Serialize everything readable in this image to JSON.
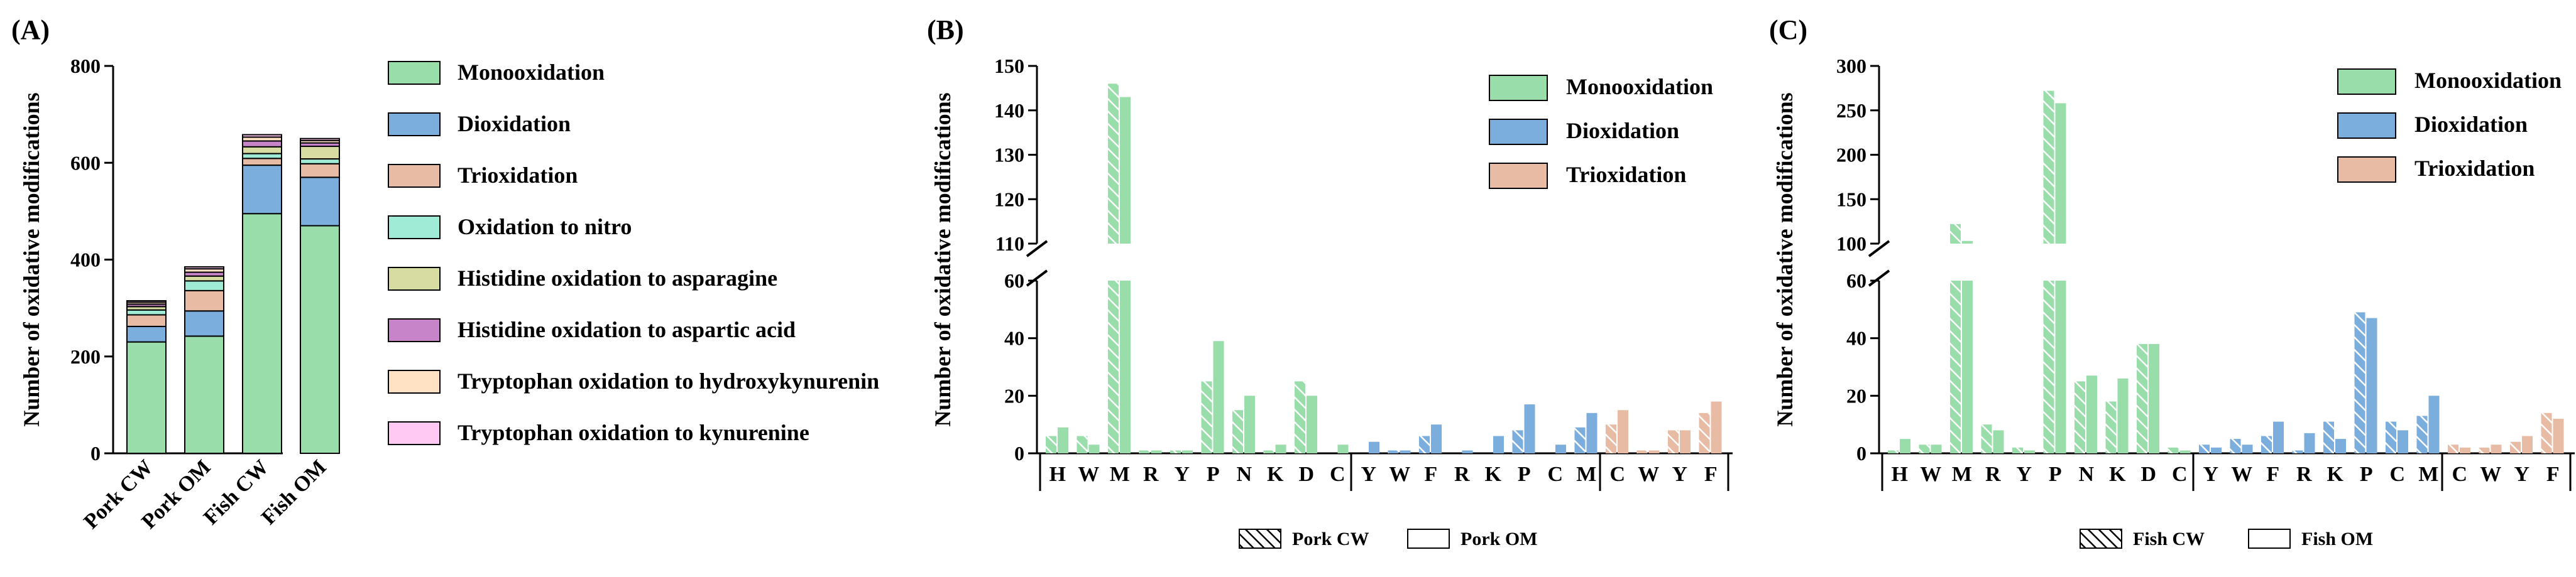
{
  "colors": {
    "mono": "#99DDAB",
    "di": "#7BAEDD",
    "tri": "#E8BBA5",
    "nitro": "#9FEBD6",
    "his_asn": "#D7DCA2",
    "his_asp": "#C784C9",
    "trp_hyd": "#FFE1C4",
    "trp_kyn": "#FFC9F3"
  },
  "chart_data": [
    {
      "panel_label": "(A)",
      "type": "bar",
      "stacked": true,
      "ylabel": "Number of oxidative modifications",
      "ylim": [
        0,
        800
      ],
      "yticks": [
        0,
        200,
        400,
        600,
        800
      ],
      "categories": [
        "Pork CW",
        "Pork OM",
        "Fish CW",
        "Fish OM"
      ],
      "legend_position": "right",
      "series": [
        {
          "name": "Monooxidation",
          "color_key": "mono",
          "values": [
            230,
            242,
            495,
            470
          ]
        },
        {
          "name": "Dioxidation",
          "color_key": "di",
          "values": [
            32,
            52,
            100,
            100
          ]
        },
        {
          "name": "Trioxidation",
          "color_key": "tri",
          "values": [
            24,
            42,
            14,
            28
          ]
        },
        {
          "name": "Oxidation to nitro",
          "color_key": "nitro",
          "values": [
            10,
            20,
            10,
            10
          ]
        },
        {
          "name": "Histidine oxidation to asparagine",
          "color_key": "his_asn",
          "values": [
            7,
            10,
            14,
            26
          ]
        },
        {
          "name": "Histidine oxidation to aspartic acid",
          "color_key": "his_asp",
          "values": [
            5,
            8,
            12,
            7
          ]
        },
        {
          "name": "Tryptophan oxidation to hydroxykynurenin",
          "color_key": "trp_hyd",
          "values": [
            4,
            7,
            8,
            5
          ]
        },
        {
          "name": "Tryptophan oxidation to kynurenine",
          "color_key": "trp_kyn",
          "values": [
            3,
            4,
            5,
            4
          ]
        }
      ]
    },
    {
      "panel_label": "(B)",
      "type": "bar",
      "ylabel": "Number of oxidative modifications",
      "lower_axis": {
        "ylim": [
          0,
          60
        ],
        "yticks": [
          0,
          20,
          40,
          60
        ]
      },
      "upper_axis": {
        "ylim": [
          110,
          150
        ],
        "yticks": [
          110,
          120,
          130,
          140,
          150
        ]
      },
      "legend_position": "top-right",
      "legend": [
        {
          "name": "Monooxidation",
          "color_key": "mono"
        },
        {
          "name": "Dioxidation",
          "color_key": "di"
        },
        {
          "name": "Trioxidation",
          "color_key": "tri"
        }
      ],
      "pattern_legend": [
        {
          "name": "Pork CW",
          "pattern": "hatched"
        },
        {
          "name": "Pork OM",
          "pattern": "open"
        }
      ],
      "groups": [
        {
          "type": "Monooxidation",
          "color_key": "mono",
          "residues": [
            "H",
            "W",
            "M",
            "R",
            "Y",
            "P",
            "N",
            "K",
            "D",
            "C"
          ],
          "CW": [
            6,
            6,
            146,
            1,
            1,
            25,
            15,
            1,
            25,
            0
          ],
          "OM": [
            9,
            3,
            143,
            1,
            1,
            39,
            20,
            3,
            20,
            3
          ]
        },
        {
          "type": "Dioxidation",
          "color_key": "di",
          "residues": [
            "Y",
            "W",
            "F",
            "R",
            "K",
            "P",
            "C",
            "M"
          ],
          "CW": [
            0,
            1,
            6,
            0,
            0,
            8,
            0,
            9
          ],
          "OM": [
            4,
            1,
            10,
            1,
            6,
            17,
            3,
            14
          ]
        },
        {
          "type": "Trioxidation",
          "color_key": "tri",
          "residues": [
            "C",
            "W",
            "Y",
            "F"
          ],
          "CW": [
            10,
            1,
            8,
            14
          ],
          "OM": [
            15,
            1,
            8,
            18
          ]
        }
      ]
    },
    {
      "panel_label": "(C)",
      "type": "bar",
      "ylabel": "Number of oxidative modifications",
      "lower_axis": {
        "ylim": [
          0,
          60
        ],
        "yticks": [
          0,
          20,
          40,
          60
        ]
      },
      "upper_axis": {
        "ylim": [
          100,
          300
        ],
        "yticks": [
          100,
          150,
          200,
          250,
          300
        ]
      },
      "legend_position": "top-right",
      "legend": [
        {
          "name": "Monooxidation",
          "color_key": "mono"
        },
        {
          "name": "Dioxidation",
          "color_key": "di"
        },
        {
          "name": "Trioxidation",
          "color_key": "tri"
        }
      ],
      "pattern_legend": [
        {
          "name": "Fish CW",
          "pattern": "hatched"
        },
        {
          "name": "Fish OM",
          "pattern": "open"
        }
      ],
      "groups": [
        {
          "type": "Monooxidation",
          "color_key": "mono",
          "residues": [
            "H",
            "W",
            "M",
            "R",
            "Y",
            "P",
            "N",
            "K",
            "D",
            "C"
          ],
          "CW": [
            1,
            3,
            122,
            10,
            2,
            272,
            25,
            18,
            38,
            2
          ],
          "OM": [
            5,
            3,
            103,
            8,
            1,
            258,
            27,
            26,
            38,
            1
          ]
        },
        {
          "type": "Dioxidation",
          "color_key": "di",
          "residues": [
            "Y",
            "W",
            "F",
            "R",
            "K",
            "P",
            "C",
            "M"
          ],
          "CW": [
            3,
            5,
            6,
            1,
            11,
            49,
            11,
            13
          ],
          "OM": [
            2,
            3,
            11,
            7,
            5,
            47,
            8,
            20
          ]
        },
        {
          "type": "Trioxidation",
          "color_key": "tri",
          "residues": [
            "C",
            "W",
            "Y",
            "F"
          ],
          "CW": [
            3,
            2,
            4,
            14
          ],
          "OM": [
            2,
            3,
            6,
            12
          ]
        }
      ]
    }
  ]
}
